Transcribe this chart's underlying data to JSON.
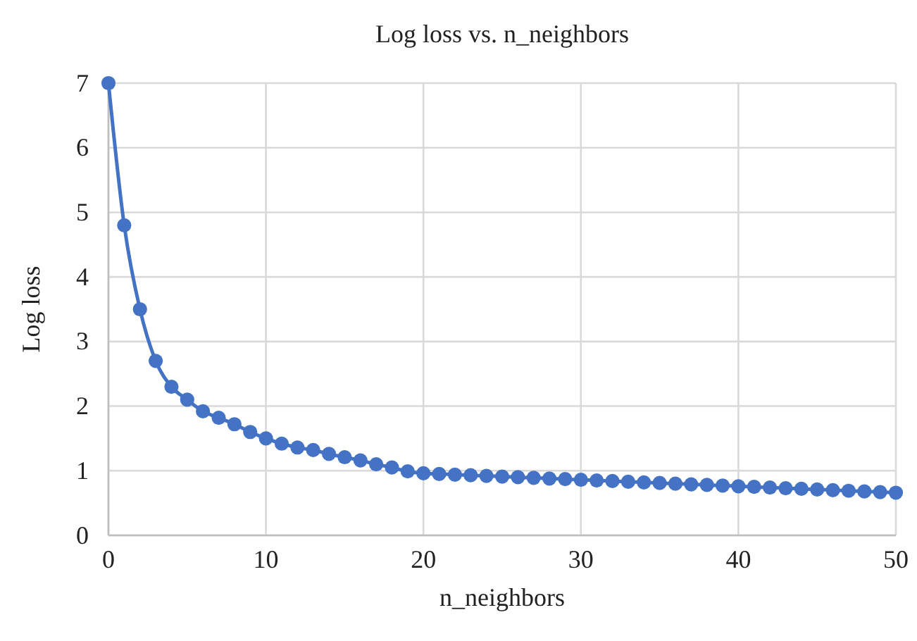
{
  "chart_data": {
    "type": "line",
    "title": "Log loss vs. n_neighbors",
    "xlabel": "n_neighbors",
    "ylabel": "Log loss",
    "x": [
      0,
      1,
      2,
      3,
      4,
      5,
      6,
      7,
      8,
      9,
      10,
      11,
      12,
      13,
      14,
      15,
      16,
      17,
      18,
      19,
      20,
      21,
      22,
      23,
      24,
      25,
      26,
      27,
      28,
      29,
      30,
      31,
      32,
      33,
      34,
      35,
      36,
      37,
      38,
      39,
      40,
      41,
      42,
      43,
      44,
      45,
      46,
      47,
      48,
      49,
      50
    ],
    "series": [
      {
        "color": "#4472c4",
        "values": [
          7,
          4.8,
          3.5,
          2.7,
          2.3,
          2.1,
          1.92,
          1.82,
          1.72,
          1.6,
          1.5,
          1.42,
          1.36,
          1.32,
          1.26,
          1.21,
          1.16,
          1.1,
          1.05,
          0.99,
          0.96,
          0.95,
          0.94,
          0.93,
          0.92,
          0.91,
          0.9,
          0.89,
          0.88,
          0.87,
          0.86,
          0.85,
          0.84,
          0.83,
          0.82,
          0.81,
          0.8,
          0.79,
          0.78,
          0.77,
          0.76,
          0.75,
          0.74,
          0.73,
          0.72,
          0.71,
          0.7,
          0.69,
          0.68,
          0.67,
          0.66
        ]
      }
    ],
    "xlim": [
      0,
      50
    ],
    "xticks": [
      0,
      10,
      20,
      30,
      40,
      50
    ],
    "ylim": [
      0,
      7
    ],
    "yticks": [
      0,
      1,
      2,
      3,
      4,
      5,
      6,
      7
    ],
    "grid": true,
    "marker": "circle",
    "line_style": "solid"
  }
}
